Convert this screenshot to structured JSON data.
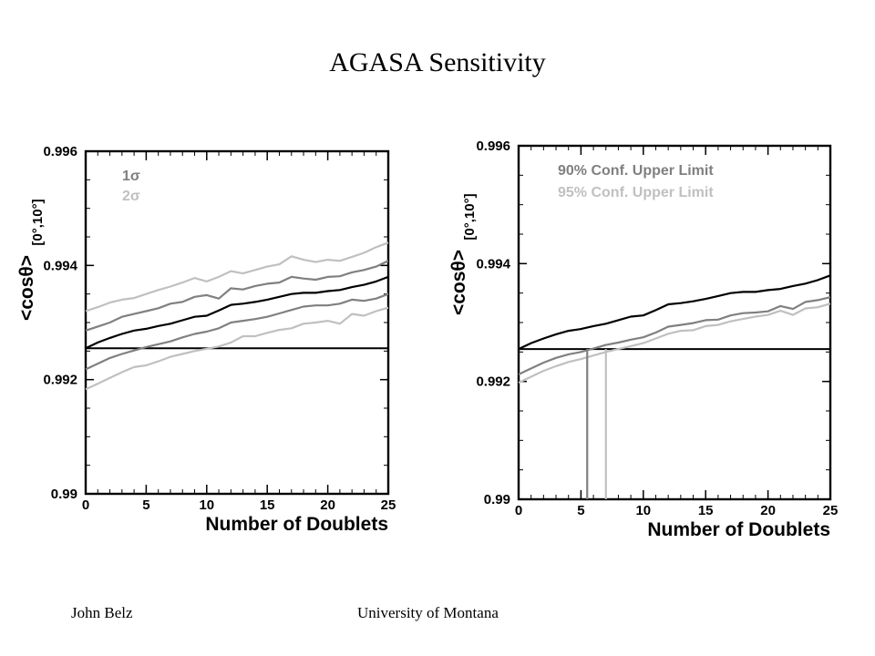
{
  "slide": {
    "title": "AGASA Sensitivity",
    "footer_left": "John Belz",
    "footer_right": "University of Montana"
  },
  "chart_data": [
    {
      "type": "line",
      "xlabel": "Number of Doublets",
      "ylabel": "<cosθ>",
      "ylabel_sub": "[0°,10°]",
      "xlim": [
        0,
        25
      ],
      "ylim": [
        0.99,
        0.996
      ],
      "xticks": [
        "0",
        "5",
        "10",
        "15",
        "20",
        "25"
      ],
      "yticks": [
        "0.99",
        "0.992",
        "0.994",
        "0.996"
      ],
      "grid": false,
      "legend": [
        "1σ",
        "2σ"
      ],
      "colors": {
        "black": "#000000",
        "sigma1": "#808080",
        "sigma2": "#c0c0c0"
      },
      "hline": 0.99255,
      "vlines": [],
      "series": [
        {
          "color": "#000000",
          "x": [
            0,
            1,
            2,
            3,
            4,
            5,
            6,
            7,
            8,
            9,
            10,
            11,
            12,
            13,
            14,
            15,
            16,
            17,
            18,
            19,
            20,
            21,
            22,
            23,
            24,
            25
          ],
          "values": [
            0.99255,
            0.99265,
            0.99273,
            0.9928,
            0.99286,
            0.99289,
            0.99294,
            0.99298,
            0.99304,
            0.9931,
            0.99312,
            0.99321,
            0.99331,
            0.99333,
            0.99336,
            0.9934,
            0.99345,
            0.9935,
            0.99352,
            0.99352,
            0.99355,
            0.99357,
            0.99362,
            0.99366,
            0.99372,
            0.9938
          ]
        },
        {
          "color": "#808080",
          "x": [
            0,
            1,
            2,
            3,
            4,
            5,
            6,
            7,
            8,
            9,
            10,
            11,
            12,
            13,
            14,
            15,
            16,
            17,
            18,
            19,
            20,
            21,
            22,
            23,
            24,
            25
          ],
          "values": [
            0.99286,
            0.99293,
            0.993,
            0.9931,
            0.99315,
            0.9932,
            0.99325,
            0.99333,
            0.99336,
            0.99345,
            0.99348,
            0.99342,
            0.9936,
            0.99358,
            0.99364,
            0.99368,
            0.9937,
            0.9938,
            0.99377,
            0.99375,
            0.9938,
            0.99381,
            0.99388,
            0.99392,
            0.99398,
            0.99408
          ]
        },
        {
          "color": "#808080",
          "x": [
            0,
            1,
            2,
            3,
            4,
            5,
            6,
            7,
            8,
            9,
            10,
            11,
            12,
            13,
            14,
            15,
            16,
            17,
            18,
            19,
            20,
            21,
            22,
            23,
            24,
            25
          ],
          "values": [
            0.99218,
            0.99228,
            0.99238,
            0.99245,
            0.99251,
            0.99257,
            0.99262,
            0.99267,
            0.99274,
            0.9928,
            0.99284,
            0.9929,
            0.993,
            0.99303,
            0.99306,
            0.9931,
            0.99316,
            0.99322,
            0.99328,
            0.9933,
            0.9933,
            0.99333,
            0.9934,
            0.99338,
            0.99342,
            0.9935
          ]
        },
        {
          "color": "#c0c0c0",
          "x": [
            0,
            1,
            2,
            3,
            4,
            5,
            6,
            7,
            8,
            9,
            10,
            11,
            12,
            13,
            14,
            15,
            16,
            17,
            18,
            19,
            20,
            21,
            22,
            23,
            24,
            25
          ],
          "values": [
            0.9932,
            0.99327,
            0.99335,
            0.9934,
            0.99343,
            0.9935,
            0.99357,
            0.99363,
            0.9937,
            0.99378,
            0.99372,
            0.9938,
            0.9939,
            0.99386,
            0.99392,
            0.99398,
            0.99402,
            0.99416,
            0.9941,
            0.99406,
            0.9941,
            0.99408,
            0.99415,
            0.99422,
            0.99432,
            0.9944
          ]
        },
        {
          "color": "#c0c0c0",
          "x": [
            0,
            1,
            2,
            3,
            4,
            5,
            6,
            7,
            8,
            9,
            10,
            11,
            12,
            13,
            14,
            15,
            16,
            17,
            18,
            19,
            20,
            21,
            22,
            23,
            24,
            25
          ],
          "values": [
            0.99183,
            0.99193,
            0.99203,
            0.99213,
            0.99222,
            0.99225,
            0.99232,
            0.9924,
            0.99245,
            0.9925,
            0.99254,
            0.99258,
            0.99265,
            0.99276,
            0.99276,
            0.99282,
            0.99287,
            0.9929,
            0.99298,
            0.993,
            0.99303,
            0.99298,
            0.99315,
            0.99312,
            0.9932,
            0.99326
          ]
        }
      ]
    },
    {
      "type": "line",
      "xlabel": "Number of Doublets",
      "ylabel": "<cosθ>",
      "ylabel_sub": "[0°,10°]",
      "xlim": [
        0,
        25
      ],
      "ylim": [
        0.99,
        0.996
      ],
      "xticks": [
        "0",
        "5",
        "10",
        "15",
        "20",
        "25"
      ],
      "yticks": [
        "0.99",
        "0.992",
        "0.994",
        "0.996"
      ],
      "grid": false,
      "legend": [
        "90% Conf. Upper Limit",
        "95% Conf. Upper Limit"
      ],
      "colors": {
        "black": "#000000",
        "cl90": "#808080",
        "cl95": "#c0c0c0"
      },
      "hline": 0.99255,
      "vlines": [
        {
          "x": 5.5,
          "color": "#808080"
        },
        {
          "x": 7.0,
          "color": "#c0c0c0"
        }
      ],
      "series": [
        {
          "color": "#000000",
          "x": [
            0,
            1,
            2,
            3,
            4,
            5,
            6,
            7,
            8,
            9,
            10,
            11,
            12,
            13,
            14,
            15,
            16,
            17,
            18,
            19,
            20,
            21,
            22,
            23,
            24,
            25
          ],
          "values": [
            0.99255,
            0.99265,
            0.99273,
            0.9928,
            0.99286,
            0.99289,
            0.99294,
            0.99298,
            0.99304,
            0.9931,
            0.99312,
            0.99321,
            0.99331,
            0.99333,
            0.99336,
            0.9934,
            0.99345,
            0.9935,
            0.99352,
            0.99352,
            0.99355,
            0.99357,
            0.99362,
            0.99366,
            0.99372,
            0.9938
          ]
        },
        {
          "color": "#808080",
          "x": [
            0,
            1,
            2,
            3,
            4,
            5,
            6,
            7,
            8,
            9,
            10,
            11,
            12,
            13,
            14,
            15,
            16,
            17,
            18,
            19,
            20,
            21,
            22,
            23,
            24,
            25
          ],
          "values": [
            0.99212,
            0.99222,
            0.99232,
            0.9924,
            0.99246,
            0.9925,
            0.99256,
            0.99262,
            0.99266,
            0.99271,
            0.99275,
            0.99283,
            0.99293,
            0.99296,
            0.99299,
            0.99304,
            0.99305,
            0.99312,
            0.99316,
            0.99317,
            0.99319,
            0.99328,
            0.99323,
            0.99335,
            0.99338,
            0.99343
          ]
        },
        {
          "color": "#c0c0c0",
          "x": [
            0,
            1,
            2,
            3,
            4,
            5,
            6,
            7,
            8,
            9,
            10,
            11,
            12,
            13,
            14,
            15,
            16,
            17,
            18,
            19,
            20,
            21,
            22,
            23,
            24,
            25
          ],
          "values": [
            0.99198,
            0.99208,
            0.99218,
            0.99226,
            0.99233,
            0.99238,
            0.99244,
            0.9925,
            0.99255,
            0.9926,
            0.99265,
            0.99273,
            0.99281,
            0.99286,
            0.99287,
            0.99294,
            0.99296,
            0.99302,
            0.99306,
            0.9931,
            0.99313,
            0.9932,
            0.99313,
            0.99324,
            0.99326,
            0.99332
          ]
        }
      ]
    }
  ]
}
